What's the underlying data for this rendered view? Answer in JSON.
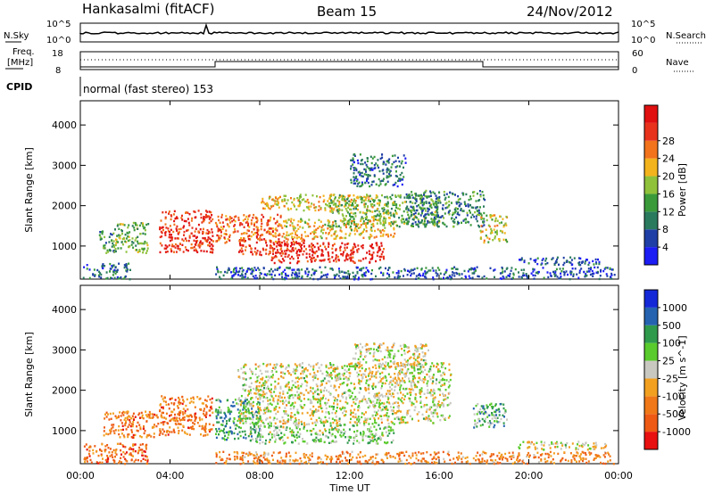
{
  "header": {
    "station": "Hankasalmi (fitACF)",
    "beam": "Beam 15",
    "date": "24/Nov/2012"
  },
  "status_panels": {
    "nsky": {
      "label": "N.Sky",
      "tick_top": "10^5",
      "tick_bottom": "10^0"
    },
    "nsearch": {
      "label": "N.Search",
      "tick_top": "10^5",
      "tick_bottom": "10^0"
    },
    "freq": {
      "label_line1": "Freq.",
      "label_line2": "[MHz]",
      "tick_top": "18",
      "tick_bottom": "8"
    },
    "nave": {
      "label": "Nave",
      "tick_top": "60",
      "tick_bottom": "0"
    },
    "cpid": {
      "label": "CPID",
      "value": "normal (fast stereo) 153"
    }
  },
  "colors": {
    "power_scale": [
      "#1c1cf5",
      "#1f3fa6",
      "#2a7a5e",
      "#3a9a3a",
      "#8fc13a",
      "#f2b31c",
      "#f2731c",
      "#e8321c",
      "#e01010"
    ],
    "velocity_scale": [
      "#e81010",
      "#ee5a14",
      "#f07818",
      "#f2a020",
      "#c8c8c0",
      "#5acb2c",
      "#2f9a4c",
      "#2563b0",
      "#1428d8"
    ]
  },
  "chart_data": [
    {
      "type": "heatmap",
      "title": "",
      "xlabel": "Time UT",
      "ylabel": "Slant Range [km]",
      "colorbar_label": "Power [dB]",
      "x_ticks": [
        "00:00",
        "04:00",
        "08:00",
        "12:00",
        "16:00",
        "20:00",
        "00:00"
      ],
      "xlim_hours": [
        0,
        24
      ],
      "y_ticks": [
        "1000",
        "2000",
        "3000",
        "4000"
      ],
      "y_tick_values": [
        1000,
        2000,
        3000,
        4000
      ],
      "ylim": [
        180,
        4600
      ],
      "colorbar_ticks": [
        "4",
        "8",
        "12",
        "16",
        "20",
        "24",
        "28"
      ],
      "colorbar_range": [
        0,
        30
      ],
      "regions": [
        {
          "t": [
            0.1,
            2.2
          ],
          "r": [
            200,
            600
          ],
          "level": 0.25
        },
        {
          "t": [
            0.8,
            1.6
          ],
          "r": [
            800,
            1400
          ],
          "level": 0.35
        },
        {
          "t": [
            1.5,
            3.0
          ],
          "r": [
            850,
            1600
          ],
          "level": 0.45
        },
        {
          "t": [
            3.5,
            5.9
          ],
          "r": [
            850,
            1900
          ],
          "level": 0.85
        },
        {
          "t": [
            6.0,
            9.0
          ],
          "r": [
            1100,
            1800
          ],
          "level": 0.75
        },
        {
          "t": [
            7.0,
            10.0
          ],
          "r": [
            800,
            1200
          ],
          "level": 0.85
        },
        {
          "t": [
            8.5,
            13.5
          ],
          "r": [
            600,
            1100
          ],
          "level": 0.9
        },
        {
          "t": [
            9.0,
            14.0
          ],
          "r": [
            1200,
            1700
          ],
          "level": 0.6
        },
        {
          "t": [
            8.0,
            13.0
          ],
          "r": [
            1900,
            2300
          ],
          "level": 0.6
        },
        {
          "t": [
            11.0,
            16.0
          ],
          "r": [
            1500,
            2300
          ],
          "level": 0.45
        },
        {
          "t": [
            14.5,
            18.0
          ],
          "r": [
            1500,
            2400
          ],
          "level": 0.3
        },
        {
          "t": [
            12.0,
            14.5
          ],
          "r": [
            2500,
            3300
          ],
          "level": 0.25
        },
        {
          "t": [
            17.8,
            19.0
          ],
          "r": [
            1100,
            1800
          ],
          "level": 0.55
        },
        {
          "t": [
            19.5,
            23.2
          ],
          "r": [
            550,
            750
          ],
          "level": 0.2
        },
        {
          "t": [
            6.0,
            23.8
          ],
          "r": [
            200,
            500
          ],
          "level": 0.2
        }
      ]
    },
    {
      "type": "heatmap",
      "title": "",
      "xlabel": "Time UT",
      "ylabel": "Slant Range [km]",
      "colorbar_label": "Velocity [m s^-1]",
      "x_ticks": [
        "00:00",
        "04:00",
        "08:00",
        "12:00",
        "16:00",
        "20:00",
        "00:00"
      ],
      "xlim_hours": [
        0,
        24
      ],
      "y_ticks": [
        "1000",
        "2000",
        "3000",
        "4000"
      ],
      "y_tick_values": [
        1000,
        2000,
        3000,
        4000
      ],
      "ylim": [
        180,
        4600
      ],
      "colorbar_ticks": [
        "1000",
        "500",
        "100",
        "25",
        "-25",
        "-100",
        "-500",
        "-1000"
      ],
      "colorbar_range": [
        -1000,
        1000
      ],
      "regions": [
        {
          "t": [
            0.1,
            3.0
          ],
          "r": [
            200,
            700
          ],
          "level": 0.22
        },
        {
          "t": [
            1.0,
            3.5
          ],
          "r": [
            850,
            1500
          ],
          "level": 0.25
        },
        {
          "t": [
            3.5,
            5.9
          ],
          "r": [
            900,
            1900
          ],
          "level": 0.25
        },
        {
          "t": [
            6.0,
            8.0
          ],
          "r": [
            800,
            1800
          ],
          "level": 0.7
        },
        {
          "t": [
            7.5,
            14.0
          ],
          "r": [
            700,
            1200
          ],
          "level": 0.6
        },
        {
          "t": [
            7.0,
            16.5
          ],
          "r": [
            1200,
            2700
          ],
          "level": 0.5
        },
        {
          "t": [
            12.0,
            15.5
          ],
          "r": [
            2600,
            3200
          ],
          "level": 0.5
        },
        {
          "t": [
            17.5,
            19.0
          ],
          "r": [
            1100,
            1700
          ],
          "level": 0.65
        },
        {
          "t": [
            19.5,
            23.5
          ],
          "r": [
            550,
            750
          ],
          "level": 0.5
        },
        {
          "t": [
            6.0,
            23.8
          ],
          "r": [
            200,
            500
          ],
          "level": 0.3
        }
      ]
    }
  ]
}
